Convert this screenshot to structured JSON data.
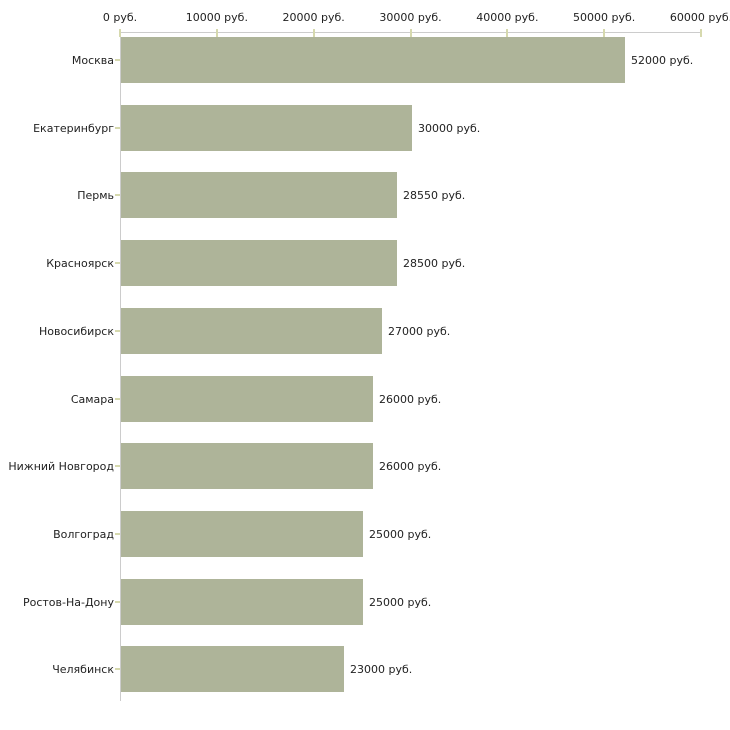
{
  "chart_data": {
    "type": "bar",
    "orientation": "horizontal",
    "categories": [
      "Москва",
      "Екатеринбург",
      "Пермь",
      "Красноярск",
      "Новосибирск",
      "Самара",
      "Нижний Новгород",
      "Волгоград",
      "Ростов-На-Дону",
      "Челябинск"
    ],
    "values": [
      52000,
      30000,
      28550,
      28500,
      27000,
      26000,
      26000,
      25000,
      25000,
      23000
    ],
    "value_labels": [
      "52000 руб.",
      "30000 руб.",
      "28550 руб.",
      "28500 руб.",
      "27000 руб.",
      "26000 руб.",
      "26000 руб.",
      "25000 руб.",
      "25000 руб.",
      "23000 руб."
    ],
    "x_tick_values": [
      0,
      10000,
      20000,
      30000,
      40000,
      50000,
      60000
    ],
    "x_tick_labels": [
      "0 руб.",
      "10000 руб.",
      "20000 руб.",
      "30000 руб.",
      "40000 руб.",
      "50000 руб.",
      "60000 руб."
    ],
    "xlim": [
      0,
      60000
    ],
    "unit": "руб.",
    "grid": false,
    "legend": "none",
    "axis_position": "top",
    "colors": {
      "bar": "#aeb499",
      "tick": "#d6d9ae",
      "axis": "#cccccc",
      "text": "#222222"
    }
  }
}
